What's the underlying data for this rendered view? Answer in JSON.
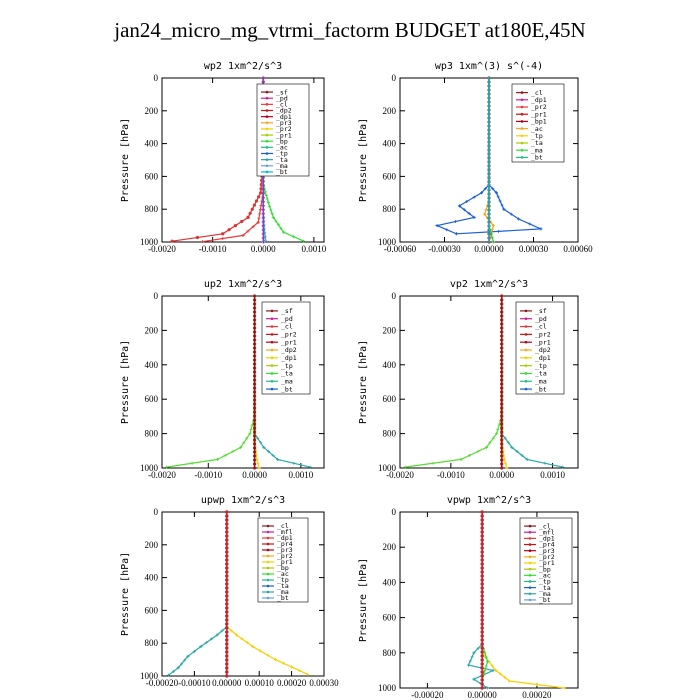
{
  "page": {
    "title": "jan24_micro_mg_vtrmi_factorm  BUDGET at180E,45N"
  },
  "chart_data": [
    {
      "type": "line",
      "title": "wp2   1xm^2/s^3",
      "ylabel": "Pressure [hPa]",
      "xlim": [
        -0.002,
        0.0012
      ],
      "ylim": [
        1000,
        0
      ],
      "xticks": [
        "-0.0020",
        "-0.0010",
        "0.0000",
        "0.0010"
      ],
      "xtick_values": [
        -0.002,
        -0.001,
        0,
        0.001
      ],
      "yticks": [
        "0",
        "200",
        "400",
        "600",
        "800",
        "1000"
      ],
      "legend": [
        "_sf",
        "_pd",
        "_cl",
        "_dp2",
        "_dp1",
        "_pr3",
        "_pr2",
        "_pr1",
        "_bp",
        "_ac",
        "_tp",
        "_ta",
        "_ma",
        "_bt"
      ],
      "series": [
        {
          "name": "_cl",
          "color": "#dd3333",
          "marker": "o",
          "points": [
            [
              0,
              0
            ],
            [
              0,
              500
            ],
            [
              -5e-05,
              700
            ],
            [
              -0.0003,
              850
            ],
            [
              -0.0008,
              950
            ],
            [
              -0.0018,
              995
            ]
          ]
        },
        {
          "name": "_dp1",
          "color": "#e83a3a",
          "marker": "+",
          "points": [
            [
              0,
              0
            ],
            [
              0,
              700
            ],
            [
              -0.0001,
              880
            ],
            [
              -0.0004,
              960
            ],
            [
              -0.0012,
              998
            ]
          ]
        },
        {
          "name": "_ac",
          "color": "#33dd33",
          "marker": "+",
          "points": [
            [
              0,
              0
            ],
            [
              0,
              650
            ],
            [
              0.0001,
              760
            ],
            [
              0.0002,
              850
            ],
            [
              0.0004,
              940
            ],
            [
              0.0008,
              995
            ]
          ]
        },
        {
          "name": "_pr1",
          "color": "#33bbaa",
          "marker": "+",
          "points": [
            [
              0,
              0
            ],
            [
              0,
              800
            ],
            [
              2e-05,
              920
            ],
            [
              5e-05,
              990
            ]
          ]
        },
        {
          "name": "_pd",
          "color": "#8a2be2",
          "marker": "+",
          "points": [
            [
              0,
              0
            ],
            [
              0,
              900
            ],
            [
              1e-05,
              1000
            ]
          ]
        },
        {
          "name": "_bt",
          "color": "#00bbdd",
          "marker": "*",
          "points": [
            [
              0,
              0
            ],
            [
              0,
              1000
            ]
          ]
        },
        {
          "name": "_sf",
          "color": "#9b30c0",
          "marker": "+",
          "points": [
            [
              0,
              0
            ],
            [
              0,
              1000
            ]
          ]
        }
      ]
    },
    {
      "type": "line",
      "title": "wp3   1xm^(3) s^(-4)",
      "ylabel": "Pressure [hPa]",
      "xlim": [
        -0.0006,
        0.0006
      ],
      "ylim": [
        1000,
        0
      ],
      "xticks": [
        "-0.00060",
        "-0.00030",
        "0.00000",
        "0.00030",
        "0.00060"
      ],
      "xtick_values": [
        -0.0006,
        -0.0003,
        0,
        0.0003,
        0.0006
      ],
      "yticks": [
        "0",
        "200",
        "400",
        "600",
        "800",
        "1000"
      ],
      "legend": [
        "_cl",
        "_dp1",
        "_pr2",
        "_pr1",
        "_bp1",
        "_ac",
        "_tp",
        "_ta",
        "_ma",
        "_bt"
      ],
      "series": [
        {
          "name": "_tp",
          "color": "#1a5ed8",
          "marker": "+",
          "points": [
            [
              0,
              0
            ],
            [
              0,
              650
            ],
            [
              -5e-05,
              700
            ],
            [
              -0.0002,
              780
            ],
            [
              -0.0001,
              850
            ],
            [
              -0.00035,
              900
            ],
            [
              -0.00022,
              950
            ],
            [
              0.00035,
              920
            ],
            [
              0.0002,
              860
            ],
            [
              0.0001,
              800
            ],
            [
              5e-05,
              700
            ],
            [
              0,
              650
            ]
          ]
        },
        {
          "name": "_pr2",
          "color": "#f5a623",
          "marker": "+",
          "points": [
            [
              0,
              0
            ],
            [
              0,
              750
            ],
            [
              -3e-05,
              830
            ],
            [
              3e-05,
              900
            ],
            [
              0,
              1000
            ]
          ]
        },
        {
          "name": "_dp1",
          "color": "#cc1111",
          "marker": "o",
          "points": [
            [
              0,
              0
            ],
            [
              0,
              1000
            ]
          ]
        },
        {
          "name": "_ac",
          "color": "#33bb33",
          "marker": "+",
          "points": [
            [
              0,
              0
            ],
            [
              0,
              900
            ],
            [
              3e-05,
              1000
            ]
          ]
        },
        {
          "name": "_bt",
          "color": "#00bbdd",
          "marker": "*",
          "points": [
            [
              0,
              0
            ],
            [
              0,
              1000
            ]
          ]
        }
      ]
    },
    {
      "type": "line",
      "title": "up2   1xm^2/s^3",
      "ylabel": "Pressure [hPa]",
      "xlim": [
        -0.002,
        0.0015
      ],
      "ylim": [
        1000,
        0
      ],
      "xticks": [
        "-0.0020",
        "-0.0010",
        "0.0000",
        "0.0010"
      ],
      "xtick_values": [
        -0.002,
        -0.001,
        0,
        0.001
      ],
      "yticks": [
        "0",
        "200",
        "400",
        "600",
        "800",
        "1000"
      ],
      "legend": [
        "_sf",
        "_pd",
        "_cl",
        "_pr2",
        "_pr1",
        "_dp2",
        "_dp1",
        "_tp",
        "_ta",
        "_ma",
        "_bt"
      ],
      "series": [
        {
          "name": "_dp1",
          "color": "#55dd33",
          "marker": "+",
          "points": [
            [
              0,
              0
            ],
            [
              0,
              700
            ],
            [
              -0.0001,
              800
            ],
            [
              -0.0003,
              880
            ],
            [
              -0.0008,
              950
            ],
            [
              -0.0019,
              995
            ]
          ]
        },
        {
          "name": "_tp",
          "color": "#2aa7a7",
          "marker": "+",
          "points": [
            [
              0,
              0
            ],
            [
              0,
              800
            ],
            [
              0.0002,
              880
            ],
            [
              0.0005,
              950
            ],
            [
              0.0012,
              995
            ]
          ]
        },
        {
          "name": "_pr1",
          "color": "#f5d000",
          "marker": "+",
          "points": [
            [
              0,
              0
            ],
            [
              0,
              850
            ],
            [
              5e-05,
              950
            ],
            [
              0.0001,
              1000
            ]
          ]
        },
        {
          "name": "_cl",
          "color": "#cc2222",
          "marker": "o",
          "points": [
            [
              0,
              0
            ],
            [
              0,
              1000
            ]
          ]
        },
        {
          "name": "_sf",
          "color": "#8b1a1a",
          "marker": "+",
          "points": [
            [
              0,
              0
            ],
            [
              0,
              1000
            ]
          ]
        }
      ]
    },
    {
      "type": "line",
      "title": "vp2   1xm^2/s^3",
      "ylabel": "Pressure [hPa]",
      "xlim": [
        -0.002,
        0.0015
      ],
      "ylim": [
        1000,
        0
      ],
      "xticks": [
        "-0.0020",
        "-0.0010",
        "0.0000",
        "0.0010"
      ],
      "xtick_values": [
        -0.002,
        -0.001,
        0,
        0.001
      ],
      "yticks": [
        "0",
        "200",
        "400",
        "600",
        "800",
        "1000"
      ],
      "legend": [
        "_sf",
        "_pd",
        "_cl",
        "_pr2",
        "_pr1",
        "_dp2",
        "_dp1",
        "_tp",
        "_ta",
        "_ma",
        "_bt"
      ],
      "series": [
        {
          "name": "_dp1",
          "color": "#55dd33",
          "marker": "+",
          "points": [
            [
              0,
              0
            ],
            [
              0,
              700
            ],
            [
              -0.0001,
              800
            ],
            [
              -0.0003,
              880
            ],
            [
              -0.0008,
              950
            ],
            [
              -0.0019,
              995
            ]
          ]
        },
        {
          "name": "_tp",
          "color": "#2aa7a7",
          "marker": "+",
          "points": [
            [
              0,
              0
            ],
            [
              0,
              800
            ],
            [
              0.0002,
              880
            ],
            [
              0.0005,
              950
            ],
            [
              0.0012,
              995
            ]
          ]
        },
        {
          "name": "_pr1",
          "color": "#f5d000",
          "marker": "+",
          "points": [
            [
              0,
              0
            ],
            [
              0,
              850
            ],
            [
              5e-05,
              950
            ],
            [
              0.0001,
              1000
            ]
          ]
        },
        {
          "name": "_cl",
          "color": "#cc2222",
          "marker": "o",
          "points": [
            [
              0,
              0
            ],
            [
              0,
              1000
            ]
          ]
        },
        {
          "name": "_sf",
          "color": "#8b1a1a",
          "marker": "+",
          "points": [
            [
              0,
              0
            ],
            [
              0,
              1000
            ]
          ]
        }
      ]
    },
    {
      "type": "line",
      "title": "upwp   1xm^2/s^3",
      "ylabel": "Pressure [hPa]",
      "xlim": [
        -0.0002,
        0.0003
      ],
      "ylim": [
        1000,
        0
      ],
      "xticks": [
        "-0.00020",
        "-0.00010",
        "0.00000",
        "0.00010",
        "0.00020",
        "0.00030"
      ],
      "xtick_values": [
        -0.0002,
        -0.0001,
        0,
        0.0001,
        0.0002,
        0.0003
      ],
      "yticks": [
        "0",
        "200",
        "400",
        "600",
        "800",
        "1000"
      ],
      "legend": [
        "_cl",
        "_mfl",
        "_dp1",
        "_pr4",
        "_pr3",
        "_pr2",
        "_pr1",
        "_bp",
        "_ac",
        "_tp",
        "_ta",
        "_ma",
        "_bt"
      ],
      "series": [
        {
          "name": "_tp",
          "color": "#2aa7a7",
          "marker": "+",
          "points": [
            [
              0,
              0
            ],
            [
              0,
              700
            ],
            [
              -3e-05,
              750
            ],
            [
              -8e-05,
              820
            ],
            [
              -0.00012,
              880
            ],
            [
              -0.00015,
              950
            ],
            [
              -0.00018,
              995
            ]
          ]
        },
        {
          "name": "_pr1",
          "color": "#f5d000",
          "marker": "+",
          "points": [
            [
              0,
              0
            ],
            [
              0,
              700
            ],
            [
              3e-05,
              750
            ],
            [
              8e-05,
              820
            ],
            [
              0.00015,
              900
            ],
            [
              0.00025,
              990
            ]
          ]
        },
        {
          "name": "_cl",
          "color": "#9b30c0",
          "marker": "o",
          "points": [
            [
              0,
              0
            ],
            [
              0,
              1000
            ]
          ]
        },
        {
          "name": "_dp1",
          "color": "#cc2222",
          "marker": "o",
          "points": [
            [
              0,
              0
            ],
            [
              0,
              1000
            ]
          ]
        }
      ]
    },
    {
      "type": "line",
      "title": "vpwp   1xm^2/s^3",
      "ylabel": "Pressure [hPa]",
      "xlim": [
        -0.0003,
        0.00035
      ],
      "ylim": [
        1000,
        0
      ],
      "xticks": [
        "-0.00020",
        "0.00000",
        "0.00020"
      ],
      "xtick_values": [
        -0.0002,
        0,
        0.0002
      ],
      "yticks": [
        "0",
        "200",
        "400",
        "600",
        "800",
        "1000"
      ],
      "legend": [
        "_cl",
        "_mfl",
        "_dp1",
        "_pr4",
        "_pr3",
        "_pr2",
        "_pr1",
        "_bp",
        "_ac",
        "_tp",
        "_ta",
        "_ma",
        "_bt"
      ],
      "series": [
        {
          "name": "_tp",
          "color": "#2aa7a7",
          "marker": "+",
          "points": [
            [
              0,
              0
            ],
            [
              0,
              750
            ],
            [
              -3e-05,
              800
            ],
            [
              -5e-05,
              870
            ],
            [
              4e-05,
              900
            ],
            [
              -3e-05,
              950
            ],
            [
              2e-05,
              1000
            ]
          ]
        },
        {
          "name": "_pr1",
          "color": "#f5d000",
          "marker": "+",
          "points": [
            [
              0,
              0
            ],
            [
              0,
              800
            ],
            [
              5e-05,
              900
            ],
            [
              0.0001,
              960
            ],
            [
              0.0003,
              1000
            ]
          ]
        },
        {
          "name": "_ac",
          "color": "#33dd33",
          "marker": "+",
          "points": [
            [
              0,
              0
            ],
            [
              0,
              750
            ],
            [
              2e-05,
              850
            ],
            [
              0,
              950
            ]
          ]
        },
        {
          "name": "_cl",
          "color": "#9b30c0",
          "marker": "o",
          "points": [
            [
              0,
              0
            ],
            [
              0,
              1000
            ]
          ]
        },
        {
          "name": "_dp1",
          "color": "#cc2222",
          "marker": "o",
          "points": [
            [
              0,
              0
            ],
            [
              0,
              1000
            ]
          ]
        }
      ]
    }
  ]
}
